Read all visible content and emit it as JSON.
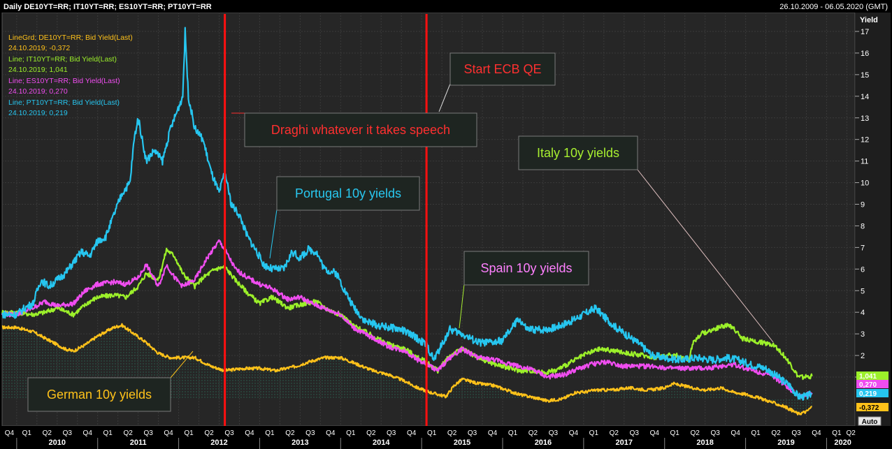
{
  "header": {
    "title": "Daily DE10YT=RR; IT10YT=RR; ES10YT=RR; PT10YT=RR",
    "date_range": "26.10.2009 - 06.05.2020 (GMT)"
  },
  "legend": [
    {
      "line1": "LineGrd; DE10YT=RR; Bid Yield(Last)",
      "line2": "24.10.2019; -0,372",
      "color": "#ffc21a"
    },
    {
      "line1": "Line; IT10YT=RR; Bid Yield(Last)",
      "line2": "24.10.2019; 1,041",
      "color": "#9cf02a"
    },
    {
      "line1": "Line; ES10YT=RR; Bid Yield(Last)",
      "line2": "24.10.2019; 0,270",
      "color": "#f04df0"
    },
    {
      "line1": "Line; PT10YT=RR; Bid Yield(Last)",
      "line2": "24.10.2019; 0,219",
      "color": "#26c6f0"
    }
  ],
  "annotations": {
    "draghi": "Draghi whatever it takes speech",
    "ecb_qe": "Start ECB QE",
    "portugal": "Portugal 10y yields",
    "italy": "Italy 10y yields",
    "spain": "Spain 10y yields",
    "german": "German 10y yields"
  },
  "value_badges": [
    {
      "text": "1,041",
      "color": "#9cf02a"
    },
    {
      "text": "0,270",
      "color": "#f04df0"
    },
    {
      "text": "0,219",
      "color": "#26c6f0"
    },
    {
      "text": "-0,372",
      "color": "#ffc21a"
    }
  ],
  "auto_label": "Auto",
  "colors": {
    "background": "#262626",
    "grid": "#3a3a3a",
    "event_line": "#ff1010",
    "germany": "#ffc21a",
    "italy": "#9cf02a",
    "spain": "#f04df0",
    "portugal": "#26c6f0"
  },
  "chart_data": {
    "type": "line",
    "ylabel": "Yield",
    "ylim": [
      -1,
      17.5
    ],
    "yticks": [
      "1",
      "2",
      "3",
      "4",
      "5",
      "6",
      "7",
      "8",
      "9",
      "10",
      "11",
      "12",
      "13",
      "14",
      "15",
      "16",
      "17"
    ],
    "xlim": [
      2009.82,
      2020.35
    ],
    "x_years": [
      "2010",
      "2011",
      "2012",
      "2013",
      "2014",
      "2015",
      "2016",
      "2017",
      "2018",
      "2019",
      "2020"
    ],
    "x_quarter_labels": [
      "Q1",
      "Q2",
      "Q3",
      "Q4"
    ],
    "grid": true,
    "events": [
      {
        "name": "Draghi whatever it takes speech",
        "x": 2012.57
      },
      {
        "name": "Start ECB QE",
        "x": 2015.06
      }
    ],
    "series": [
      {
        "name": "DE10YT=RR",
        "points": [
          [
            2009.82,
            3.3
          ],
          [
            2010.0,
            3.3
          ],
          [
            2010.2,
            3.1
          ],
          [
            2010.4,
            2.7
          ],
          [
            2010.6,
            2.3
          ],
          [
            2010.7,
            2.2
          ],
          [
            2010.85,
            2.5
          ],
          [
            2011.0,
            2.9
          ],
          [
            2011.2,
            3.3
          ],
          [
            2011.3,
            3.4
          ],
          [
            2011.45,
            3.0
          ],
          [
            2011.6,
            2.6
          ],
          [
            2011.75,
            2.1
          ],
          [
            2011.9,
            1.9
          ],
          [
            2012.0,
            1.9
          ],
          [
            2012.2,
            1.9
          ],
          [
            2012.4,
            1.5
          ],
          [
            2012.57,
            1.3
          ],
          [
            2012.8,
            1.4
          ],
          [
            2013.0,
            1.4
          ],
          [
            2013.2,
            1.3
          ],
          [
            2013.45,
            1.5
          ],
          [
            2013.6,
            1.7
          ],
          [
            2013.8,
            1.9
          ],
          [
            2014.0,
            1.9
          ],
          [
            2014.2,
            1.6
          ],
          [
            2014.4,
            1.3
          ],
          [
            2014.6,
            1.1
          ],
          [
            2014.8,
            0.8
          ],
          [
            2014.95,
            0.5
          ],
          [
            2015.1,
            0.3
          ],
          [
            2015.3,
            0.1
          ],
          [
            2015.4,
            0.6
          ],
          [
            2015.5,
            0.9
          ],
          [
            2015.7,
            0.7
          ],
          [
            2015.9,
            0.6
          ],
          [
            2016.05,
            0.4
          ],
          [
            2016.2,
            0.2
          ],
          [
            2016.45,
            0.0
          ],
          [
            2016.55,
            -0.1
          ],
          [
            2016.75,
            0.0
          ],
          [
            2016.9,
            0.3
          ],
          [
            2017.0,
            0.3
          ],
          [
            2017.15,
            0.4
          ],
          [
            2017.35,
            0.4
          ],
          [
            2017.55,
            0.5
          ],
          [
            2017.8,
            0.4
          ],
          [
            2018.0,
            0.5
          ],
          [
            2018.1,
            0.7
          ],
          [
            2018.35,
            0.5
          ],
          [
            2018.5,
            0.4
          ],
          [
            2018.7,
            0.5
          ],
          [
            2018.85,
            0.3
          ],
          [
            2019.0,
            0.2
          ],
          [
            2019.2,
            0.0
          ],
          [
            2019.35,
            -0.2
          ],
          [
            2019.5,
            -0.4
          ],
          [
            2019.65,
            -0.7
          ],
          [
            2019.75,
            -0.6
          ],
          [
            2019.82,
            -0.37
          ]
        ]
      },
      {
        "name": "IT10YT=RR",
        "points": [
          [
            2009.82,
            4.0
          ],
          [
            2010.0,
            4.0
          ],
          [
            2010.2,
            3.9
          ],
          [
            2010.35,
            4.0
          ],
          [
            2010.5,
            4.2
          ],
          [
            2010.7,
            3.9
          ],
          [
            2010.9,
            4.5
          ],
          [
            2011.0,
            4.7
          ],
          [
            2011.2,
            4.8
          ],
          [
            2011.35,
            4.7
          ],
          [
            2011.5,
            5.2
          ],
          [
            2011.6,
            5.8
          ],
          [
            2011.75,
            5.5
          ],
          [
            2011.85,
            6.9
          ],
          [
            2011.95,
            6.6
          ],
          [
            2012.05,
            5.8
          ],
          [
            2012.2,
            5.2
          ],
          [
            2012.3,
            5.6
          ],
          [
            2012.45,
            6.0
          ],
          [
            2012.57,
            6.1
          ],
          [
            2012.7,
            5.5
          ],
          [
            2012.85,
            4.9
          ],
          [
            2013.0,
            4.4
          ],
          [
            2013.15,
            4.7
          ],
          [
            2013.35,
            4.2
          ],
          [
            2013.55,
            4.4
          ],
          [
            2013.7,
            4.5
          ],
          [
            2013.85,
            4.1
          ],
          [
            2014.0,
            3.9
          ],
          [
            2014.15,
            3.4
          ],
          [
            2014.3,
            3.1
          ],
          [
            2014.45,
            2.8
          ],
          [
            2014.6,
            2.5
          ],
          [
            2014.8,
            2.3
          ],
          [
            2014.95,
            1.9
          ],
          [
            2015.06,
            1.7
          ],
          [
            2015.2,
            1.3
          ],
          [
            2015.35,
            2.0
          ],
          [
            2015.5,
            2.3
          ],
          [
            2015.7,
            1.9
          ],
          [
            2015.9,
            1.6
          ],
          [
            2016.0,
            1.5
          ],
          [
            2016.2,
            1.3
          ],
          [
            2016.35,
            1.3
          ],
          [
            2016.5,
            1.2
          ],
          [
            2016.65,
            1.3
          ],
          [
            2016.8,
            1.6
          ],
          [
            2016.95,
            1.9
          ],
          [
            2017.05,
            2.1
          ],
          [
            2017.2,
            2.3
          ],
          [
            2017.4,
            2.2
          ],
          [
            2017.55,
            2.1
          ],
          [
            2017.75,
            2.0
          ],
          [
            2017.9,
            1.9
          ],
          [
            2018.0,
            2.0
          ],
          [
            2018.15,
            2.0
          ],
          [
            2018.3,
            1.8
          ],
          [
            2018.35,
            2.6
          ],
          [
            2018.45,
            3.0
          ],
          [
            2018.6,
            3.2
          ],
          [
            2018.75,
            3.4
          ],
          [
            2018.85,
            3.3
          ],
          [
            2018.95,
            2.8
          ],
          [
            2019.05,
            2.7
          ],
          [
            2019.2,
            2.6
          ],
          [
            2019.35,
            2.5
          ],
          [
            2019.45,
            2.1
          ],
          [
            2019.55,
            1.6
          ],
          [
            2019.65,
            1.0
          ],
          [
            2019.75,
            1.0
          ],
          [
            2019.82,
            1.04
          ]
        ]
      },
      {
        "name": "ES10YT=RR",
        "points": [
          [
            2009.82,
            3.9
          ],
          [
            2010.0,
            3.9
          ],
          [
            2010.2,
            4.2
          ],
          [
            2010.35,
            4.5
          ],
          [
            2010.5,
            4.3
          ],
          [
            2010.7,
            4.4
          ],
          [
            2010.85,
            5.0
          ],
          [
            2011.0,
            5.3
          ],
          [
            2011.2,
            5.4
          ],
          [
            2011.35,
            5.3
          ],
          [
            2011.5,
            5.6
          ],
          [
            2011.6,
            6.2
          ],
          [
            2011.75,
            5.2
          ],
          [
            2011.85,
            6.2
          ],
          [
            2011.95,
            5.6
          ],
          [
            2012.05,
            5.2
          ],
          [
            2012.2,
            5.5
          ],
          [
            2012.35,
            6.5
          ],
          [
            2012.5,
            7.3
          ],
          [
            2012.57,
            6.9
          ],
          [
            2012.7,
            6.0
          ],
          [
            2012.85,
            5.6
          ],
          [
            2013.0,
            5.3
          ],
          [
            2013.15,
            5.1
          ],
          [
            2013.35,
            4.6
          ],
          [
            2013.5,
            4.7
          ],
          [
            2013.65,
            4.4
          ],
          [
            2013.85,
            4.1
          ],
          [
            2014.0,
            3.9
          ],
          [
            2014.15,
            3.3
          ],
          [
            2014.3,
            3.0
          ],
          [
            2014.45,
            2.7
          ],
          [
            2014.6,
            2.4
          ],
          [
            2014.8,
            2.2
          ],
          [
            2014.95,
            1.8
          ],
          [
            2015.06,
            1.6
          ],
          [
            2015.2,
            1.3
          ],
          [
            2015.35,
            1.9
          ],
          [
            2015.5,
            2.3
          ],
          [
            2015.7,
            1.9
          ],
          [
            2015.9,
            1.8
          ],
          [
            2016.0,
            1.7
          ],
          [
            2016.2,
            1.5
          ],
          [
            2016.4,
            1.3
          ],
          [
            2016.55,
            1.0
          ],
          [
            2016.75,
            1.1
          ],
          [
            2016.95,
            1.4
          ],
          [
            2017.1,
            1.6
          ],
          [
            2017.3,
            1.7
          ],
          [
            2017.5,
            1.5
          ],
          [
            2017.7,
            1.5
          ],
          [
            2017.9,
            1.5
          ],
          [
            2018.05,
            1.4
          ],
          [
            2018.2,
            1.4
          ],
          [
            2018.35,
            1.4
          ],
          [
            2018.5,
            1.4
          ],
          [
            2018.7,
            1.5
          ],
          [
            2018.85,
            1.6
          ],
          [
            2019.0,
            1.4
          ],
          [
            2019.2,
            1.2
          ],
          [
            2019.35,
            1.0
          ],
          [
            2019.5,
            0.6
          ],
          [
            2019.6,
            0.3
          ],
          [
            2019.7,
            0.1
          ],
          [
            2019.82,
            0.27
          ]
        ]
      },
      {
        "name": "PT10YT=RR",
        "points": [
          [
            2009.82,
            3.9
          ],
          [
            2010.0,
            3.9
          ],
          [
            2010.1,
            4.2
          ],
          [
            2010.2,
            4.4
          ],
          [
            2010.3,
            5.5
          ],
          [
            2010.4,
            5.2
          ],
          [
            2010.5,
            5.5
          ],
          [
            2010.6,
            5.8
          ],
          [
            2010.7,
            6.3
          ],
          [
            2010.8,
            6.8
          ],
          [
            2010.9,
            6.6
          ],
          [
            2011.0,
            7.3
          ],
          [
            2011.1,
            7.5
          ],
          [
            2011.2,
            8.5
          ],
          [
            2011.3,
            9.5
          ],
          [
            2011.4,
            10.0
          ],
          [
            2011.45,
            12.0
          ],
          [
            2011.5,
            13.0
          ],
          [
            2011.6,
            11.0
          ],
          [
            2011.7,
            11.5
          ],
          [
            2011.8,
            11.0
          ],
          [
            2011.9,
            12.5
          ],
          [
            2012.0,
            13.5
          ],
          [
            2012.05,
            14.0
          ],
          [
            2012.08,
            17.0
          ],
          [
            2012.12,
            14.0
          ],
          [
            2012.2,
            12.5
          ],
          [
            2012.3,
            12.0
          ],
          [
            2012.4,
            10.5
          ],
          [
            2012.5,
            9.5
          ],
          [
            2012.57,
            10.5
          ],
          [
            2012.65,
            9.0
          ],
          [
            2012.75,
            8.5
          ],
          [
            2012.85,
            7.5
          ],
          [
            2012.95,
            6.9
          ],
          [
            2013.05,
            6.2
          ],
          [
            2013.15,
            6.0
          ],
          [
            2013.3,
            6.0
          ],
          [
            2013.4,
            6.8
          ],
          [
            2013.5,
            6.5
          ],
          [
            2013.6,
            6.9
          ],
          [
            2013.7,
            6.8
          ],
          [
            2013.8,
            6.0
          ],
          [
            2013.95,
            5.8
          ],
          [
            2014.05,
            5.0
          ],
          [
            2014.15,
            4.3
          ],
          [
            2014.3,
            3.6
          ],
          [
            2014.45,
            3.4
          ],
          [
            2014.6,
            3.3
          ],
          [
            2014.75,
            3.2
          ],
          [
            2014.9,
            2.9
          ],
          [
            2015.06,
            2.5
          ],
          [
            2015.15,
            1.8
          ],
          [
            2015.25,
            2.5
          ],
          [
            2015.35,
            3.2
          ],
          [
            2015.5,
            3.0
          ],
          [
            2015.7,
            2.6
          ],
          [
            2015.9,
            2.6
          ],
          [
            2016.0,
            2.7
          ],
          [
            2016.1,
            3.2
          ],
          [
            2016.2,
            3.7
          ],
          [
            2016.3,
            3.2
          ],
          [
            2016.5,
            3.2
          ],
          [
            2016.65,
            3.3
          ],
          [
            2016.85,
            3.6
          ],
          [
            2017.0,
            3.9
          ],
          [
            2017.15,
            4.2
          ],
          [
            2017.25,
            3.8
          ],
          [
            2017.4,
            3.3
          ],
          [
            2017.55,
            2.9
          ],
          [
            2017.7,
            2.5
          ],
          [
            2017.85,
            2.0
          ],
          [
            2018.0,
            1.9
          ],
          [
            2018.2,
            1.8
          ],
          [
            2018.4,
            1.9
          ],
          [
            2018.6,
            1.8
          ],
          [
            2018.75,
            1.9
          ],
          [
            2018.9,
            1.8
          ],
          [
            2019.05,
            1.6
          ],
          [
            2019.25,
            1.4
          ],
          [
            2019.4,
            1.0
          ],
          [
            2019.55,
            0.6
          ],
          [
            2019.65,
            0.1
          ],
          [
            2019.75,
            0.1
          ],
          [
            2019.82,
            0.22
          ]
        ]
      }
    ]
  }
}
